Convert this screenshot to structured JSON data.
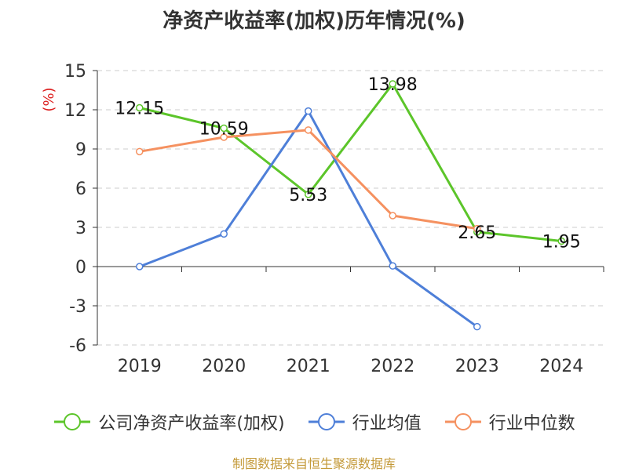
{
  "chart_data": {
    "type": "line",
    "title": "净资产收益率(加权)历年情况(%)",
    "ylabel": "(%)",
    "categories": [
      "2019",
      "2020",
      "2021",
      "2022",
      "2023",
      "2024"
    ],
    "ylim": [
      -6,
      15
    ],
    "yticks": [
      15,
      12,
      9,
      6,
      3,
      0,
      -3,
      -6
    ],
    "grid": true,
    "legend_position": "bottom",
    "series": [
      {
        "name": "公司净资产收益率(加权)",
        "color": "#5cc52a",
        "values": [
          12.15,
          10.59,
          5.53,
          13.98,
          2.65,
          1.95
        ],
        "labels": [
          "12.15",
          "10.59",
          "5.53",
          "13.98",
          "2.65",
          "1.95"
        ]
      },
      {
        "name": "行业均值",
        "color": "#4e7fd8",
        "values": [
          0.0,
          2.5,
          11.9,
          0.05,
          -4.6,
          null
        ]
      },
      {
        "name": "行业中位数",
        "color": "#f59160",
        "values": [
          8.8,
          9.9,
          10.45,
          3.9,
          2.9,
          null
        ]
      }
    ]
  },
  "source": "制图数据来自恒生聚源数据库"
}
